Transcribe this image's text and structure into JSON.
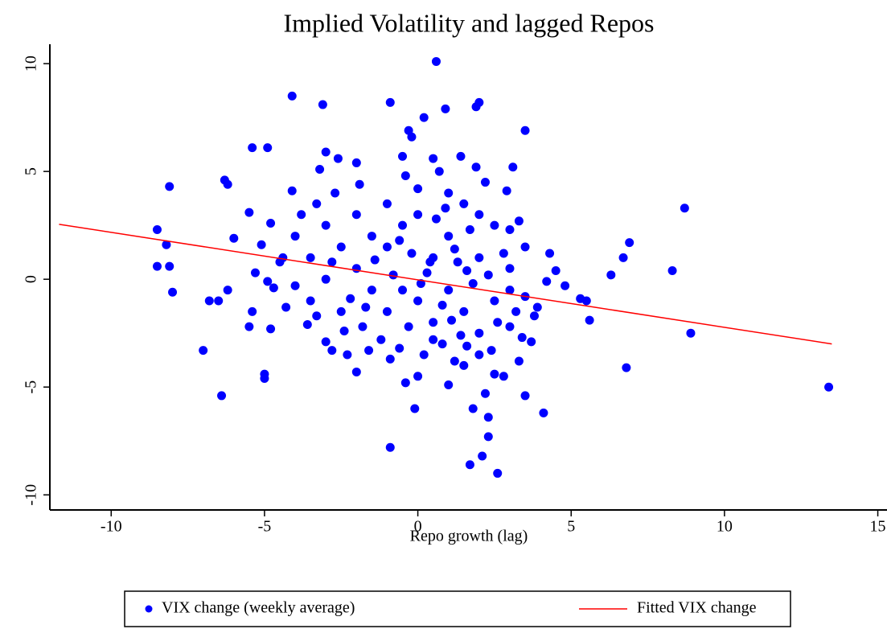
{
  "chart_data": {
    "type": "scatter",
    "title": "Implied Volatility and lagged Repos",
    "x_label": "Repo growth (lag)",
    "xlim": [
      -12,
      15.3
    ],
    "ylim": [
      -10.7,
      10.9
    ],
    "xticks": [
      -10,
      -5,
      0,
      5,
      10,
      15
    ],
    "yticks": [
      -10,
      -5,
      0,
      5,
      10
    ],
    "grid": false,
    "legend": "bottom",
    "series": [
      {
        "name": "VIX change (weekly average)",
        "color": "#0000ff",
        "type": "scatter",
        "x": [
          0.6,
          -4.1,
          -3.1,
          -0.9,
          0.9,
          1.9,
          2.0,
          0.2,
          -0.3,
          -0.2,
          3.5,
          -5.4,
          -4.9,
          -3.0,
          3.1,
          1.4,
          0.5,
          -0.5,
          -3.2,
          -2.6,
          -2.0,
          -6.3,
          -6.2,
          -8.1,
          -4.1,
          8.7,
          -5.5,
          -8.5,
          -8.2,
          -8.5,
          -8.1,
          -8.0,
          -7.0,
          -6.4,
          -6.8,
          -6.5,
          -6.2,
          -6.0,
          -5.4,
          -5.5,
          -5.0,
          -5.0,
          -4.8,
          -4.9,
          -5.1,
          -4.5,
          -3.6,
          -3.0,
          -2.8,
          -2.0,
          -0.9,
          -0.1,
          1.7,
          2.6,
          2.1,
          2.3,
          2.3,
          1.8,
          4.1,
          3.5,
          2.2,
          1.0,
          -0.4,
          2.8,
          6.8,
          13.4,
          8.9,
          5.6,
          8.3,
          6.3,
          6.7,
          6.9,
          5.3,
          5.5,
          4.8,
          4.5,
          4.3,
          4.2,
          3.9,
          3.7,
          3.8,
          3.3,
          3.3,
          3.0,
          2.9,
          3.4,
          3.0,
          2.5,
          1.5,
          -1.5,
          -1.0,
          -0.5,
          0,
          0.5,
          1.0,
          1.5,
          2.0,
          2.5,
          -2.0,
          -1.5,
          -1.0,
          -0.5,
          0,
          0.5,
          1.0,
          1.5,
          2.0,
          2.5,
          3.0,
          -2.5,
          -2.5,
          -3.0,
          -3.5,
          -3.5,
          -4.0,
          -4.0,
          -3.0,
          -2.0,
          -1.0,
          0.0,
          1.0,
          2.0,
          -0.8,
          -0.2,
          0.3,
          0.8,
          1.3,
          1.8,
          2.3,
          -1.8,
          -1.2,
          -0.6,
          0.2,
          0.8,
          1.4,
          2.0,
          2.6,
          3.2,
          -0.3,
          0.6,
          1.2,
          -1.4,
          0.1,
          0.4,
          -0.6,
          1.6,
          1.1,
          -2.2,
          -2.8,
          -1.7,
          2.8,
          0.9,
          -3.8,
          -4.4,
          -4.7,
          -5.3,
          -4.3,
          -3.3,
          -2.4,
          -1.6,
          -0.9,
          0.0,
          1.2,
          2.4,
          3.0,
          3.5,
          3.5,
          2.2,
          1.7,
          -0.4,
          -2.7,
          -3.3,
          -4.8,
          -1.9,
          0.7,
          1.9,
          -2.3,
          0.5,
          1.6
        ],
        "values": [
          10.1,
          8.5,
          8.1,
          8.2,
          7.9,
          8.0,
          8.2,
          7.5,
          6.9,
          6.6,
          6.9,
          6.1,
          6.1,
          5.9,
          5.2,
          5.7,
          5.6,
          5.7,
          5.1,
          5.6,
          5.4,
          4.6,
          4.4,
          4.3,
          4.1,
          3.3,
          3.1,
          2.3,
          1.6,
          0.6,
          0.6,
          -0.6,
          -3.3,
          -5.4,
          -1.0,
          -1.0,
          -0.5,
          1.9,
          -1.5,
          -2.2,
          -4.4,
          -4.6,
          -2.3,
          -0.1,
          1.6,
          0.8,
          -2.1,
          -2.9,
          -3.3,
          -4.3,
          -7.8,
          -6.0,
          -8.6,
          -9.0,
          -8.2,
          -7.3,
          -6.4,
          -6.0,
          -6.2,
          -5.4,
          -5.3,
          -4.9,
          -4.8,
          -4.5,
          -4.1,
          -5.0,
          -2.5,
          -1.9,
          0.4,
          0.2,
          1.0,
          1.7,
          -0.9,
          -1.0,
          -0.3,
          0.4,
          1.2,
          -0.1,
          -1.3,
          -2.9,
          -1.7,
          -3.8,
          2.7,
          2.3,
          4.1,
          -2.7,
          -0.5,
          -4.4,
          -4.0,
          2.0,
          1.5,
          2.5,
          3.0,
          1.0,
          2.0,
          3.5,
          1.0,
          2.5,
          0.5,
          -0.5,
          -1.5,
          -0.5,
          -1.0,
          -2.0,
          -0.5,
          -1.5,
          -2.5,
          -1.0,
          0.5,
          1.5,
          -1.5,
          0.0,
          1.0,
          -1.0,
          -0.3,
          2.0,
          2.5,
          3.0,
          3.5,
          4.2,
          4.0,
          3.0,
          0.2,
          1.2,
          0.3,
          -1.2,
          0.8,
          -0.2,
          0.2,
          -2.2,
          -2.8,
          -3.2,
          -3.5,
          -3.0,
          -2.6,
          -3.5,
          -2.0,
          -1.5,
          -2.2,
          2.8,
          1.4,
          0.9,
          -0.2,
          0.8,
          1.8,
          0.4,
          -1.9,
          -0.9,
          0.8,
          -1.3,
          1.2,
          3.3,
          3.0,
          1.0,
          -0.4,
          0.3,
          -1.3,
          -1.7,
          -2.4,
          -3.3,
          -3.7,
          -4.5,
          -3.8,
          -3.3,
          -2.2,
          -0.8,
          1.5,
          4.5,
          2.3,
          4.8,
          4.0,
          3.5,
          2.6,
          4.4,
          5.0,
          5.2,
          -3.5,
          -2.8,
          -3.1
        ]
      },
      {
        "name": "Fitted VIX change",
        "color": "#ff0000",
        "type": "line",
        "x": [
          -11.7,
          13.5
        ],
        "values": [
          2.55,
          -3.0
        ]
      }
    ]
  }
}
